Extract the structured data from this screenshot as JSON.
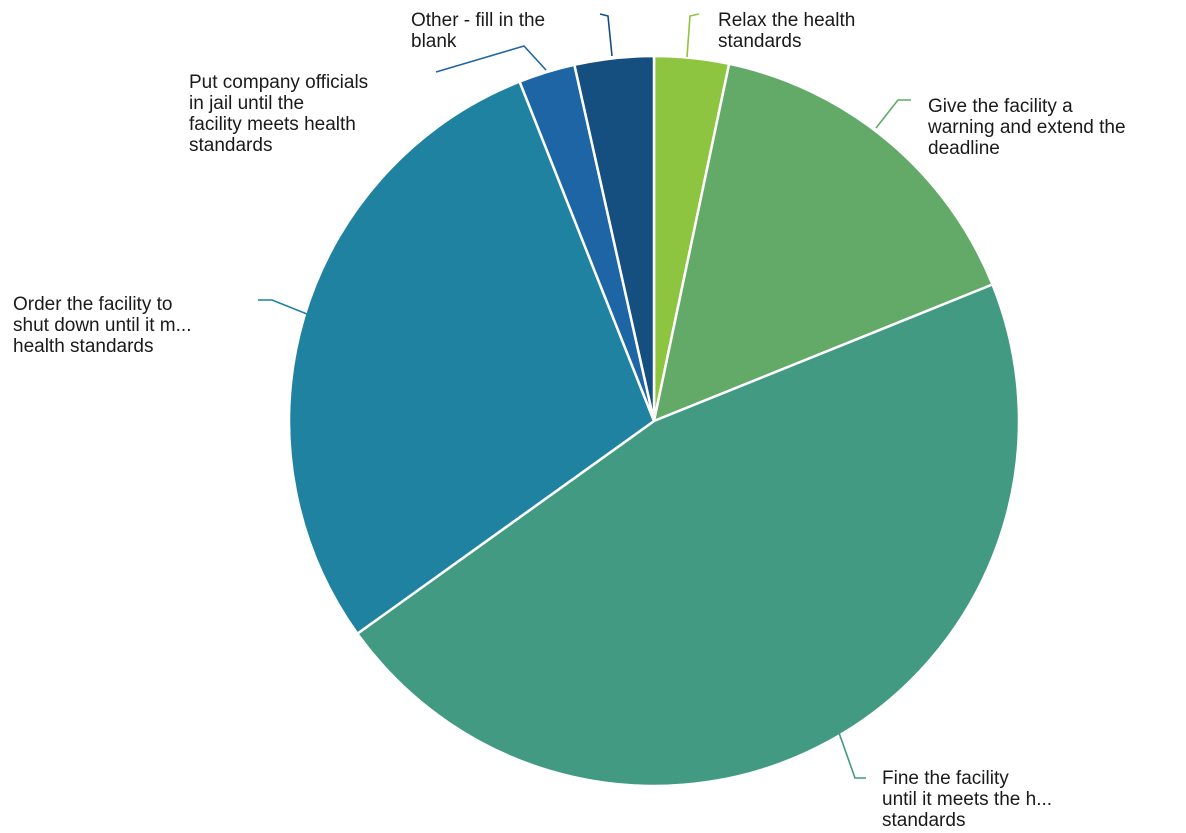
{
  "chart_data": {
    "type": "pie",
    "title": "",
    "slices": [
      {
        "label": "Relax the health standards",
        "label_lines": [
          "Relax the health",
          "standards"
        ],
        "value": 3.3,
        "color": "#8dc540"
      },
      {
        "label": "Give the facility a warning and extend the deadline",
        "label_lines": [
          "Give the facility a",
          "warning and extend the",
          "deadline"
        ],
        "value": 15.6,
        "color": "#63aa69"
      },
      {
        "label": "Fine the facility until it meets the h... standards",
        "label_lines": [
          "Fine the facility",
          "until it meets the h...",
          "standards"
        ],
        "value": 46.2,
        "color": "#419a81"
      },
      {
        "label": "Order the facility to shut down until it m... health standards",
        "label_lines": [
          "Order the facility to",
          "shut down until it m...",
          "health standards"
        ],
        "value": 28.9,
        "color": "#1f82a0"
      },
      {
        "label": "Put company officials in jail until the facility meets health standards",
        "label_lines": [
          "Put company officials",
          "in jail until the",
          "facility meets health",
          "standards"
        ],
        "value": 2.5,
        "color": "#1e65a5"
      },
      {
        "label": "Other - fill in the blank",
        "label_lines": [
          "Other - fill in the",
          "blank"
        ],
        "value": 3.5,
        "color": "#154f80"
      }
    ],
    "legend": "none"
  }
}
